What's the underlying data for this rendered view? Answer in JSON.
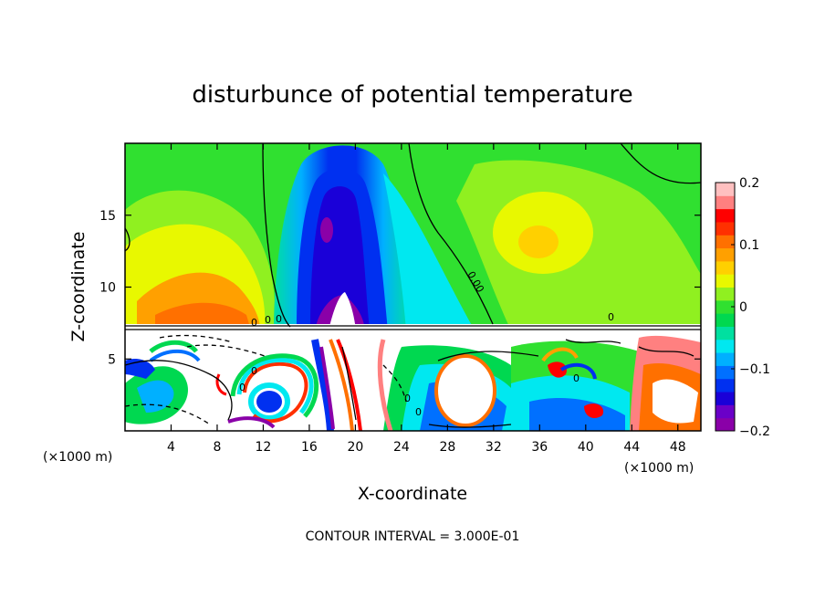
{
  "chart_data": {
    "type": "heatmap",
    "title": "disturbunce of potential temperature",
    "xlabel": "X-coordinate",
    "ylabel": "Z-coordinate",
    "x_unit_label_left": "(×1000 m)",
    "x_unit_label_right": "(×1000 m)",
    "xlim": [
      0,
      50
    ],
    "ylim": [
      0,
      20
    ],
    "x_ticks": [
      4,
      8,
      12,
      16,
      20,
      24,
      28,
      32,
      36,
      40,
      44,
      48
    ],
    "x_tick_labels": [
      "4",
      "8",
      "12",
      "16",
      "20",
      "24",
      "28",
      "32",
      "36",
      "40",
      "44",
      "48"
    ],
    "y_ticks": [
      5,
      10,
      15
    ],
    "y_tick_labels": [
      "5",
      "10",
      "15"
    ],
    "colorbar": {
      "range": [
        -0.2,
        0.2
      ],
      "ticks": [
        0.2,
        0.1,
        0,
        -0.1,
        -0.2
      ],
      "tick_labels": [
        "0.2",
        "0.1",
        "0",
        "−0.1",
        "−0.2"
      ],
      "colors": [
        "#8a00a8",
        "#6a00c8",
        "#1a00d8",
        "#0030f0",
        "#0070ff",
        "#00b0ff",
        "#00e8f0",
        "#00e0a0",
        "#00d850",
        "#30e030",
        "#90f020",
        "#e8f800",
        "#ffd000",
        "#ffa000",
        "#ff7000",
        "#ff3000",
        "#ff0000",
        "#ff8080",
        "#ffc0c0"
      ]
    },
    "contour_labels": [
      "0.00",
      "0",
      "0",
      "0",
      "0",
      "0",
      "0",
      "0",
      "0",
      "0"
    ],
    "footer": "CONTOUR INTERVAL = 3.000E-01"
  }
}
